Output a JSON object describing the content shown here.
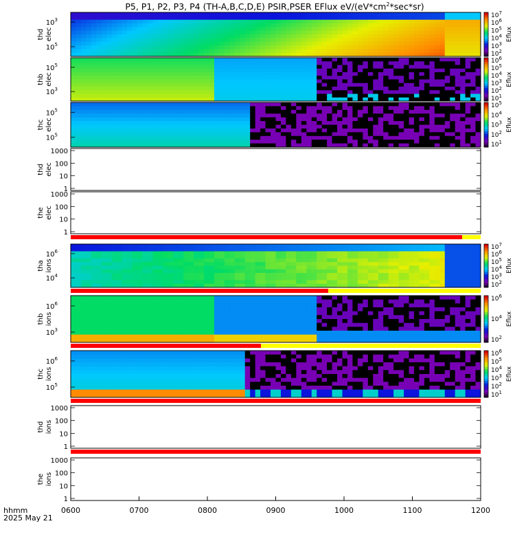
{
  "title": "P5, P1, P2, P3, P4 (TH-A,B,C,D,E) PSIR,PSER EFlux eV/(eV*cm",
  "title_sup": "2",
  "title_tail": "*sec*sr)",
  "footer": {
    "time_label": "hhmm",
    "date_label": "2025 May 21"
  },
  "chart_data": {
    "type": "heatmap",
    "x_axis": {
      "ticks": [
        "0600",
        "0700",
        "0800",
        "0900",
        "1000",
        "1100",
        "1200"
      ],
      "range_hours": [
        6,
        12
      ]
    },
    "colorbar_label": "Eflux",
    "panels": [
      {
        "label1": "thd",
        "label2": "elec",
        "kind": "spec",
        "yticks": [
          "10",
          "10"
        ],
        "ysup": [
          "3",
          "5"
        ],
        "cbar_ticks": [
          "7",
          "6",
          "5",
          "4",
          "3",
          "2"
        ],
        "pattern": "tha_elec"
      },
      {
        "label1": "thb",
        "label2": "elec",
        "kind": "spec",
        "yticks": [
          "10",
          "10"
        ],
        "ysup": [
          "5",
          "3"
        ],
        "cbar_ticks": [
          "6",
          "5",
          "4",
          "3",
          "2",
          "1"
        ],
        "pattern": "thb_elec"
      },
      {
        "label1": "thc",
        "label2": "elec",
        "kind": "spec",
        "yticks": [
          "10",
          "10"
        ],
        "ysup": [
          "5",
          "5"
        ],
        "cbar_ticks": [
          "5",
          "4",
          "3",
          "2",
          "1"
        ],
        "pattern": "thc_elec"
      },
      {
        "label1": "thd",
        "label2": "elec",
        "kind": "empty",
        "yticks": [
          "1000",
          "100",
          "10",
          "1"
        ]
      },
      {
        "label1": "the",
        "label2": "elec",
        "kind": "empty",
        "yticks": [
          "1000",
          "100",
          "10",
          "1"
        ]
      },
      {
        "label1": "tha",
        "label2": "ions",
        "kind": "spec",
        "yticks": [
          "10",
          "10"
        ],
        "ysup": [
          "6",
          "4"
        ],
        "cbar_ticks": [
          "7",
          "6",
          "5",
          "4",
          "3",
          "2"
        ],
        "pattern": "tha_ions"
      },
      {
        "label1": "thb",
        "label2": "ions",
        "kind": "spec",
        "yticks": [
          "10",
          "10"
        ],
        "ysup": [
          "6",
          "3"
        ],
        "cbar_ticks": [
          "6",
          "4",
          "2"
        ],
        "pattern": "thb_ions"
      },
      {
        "label1": "thc",
        "label2": "ions",
        "kind": "spec",
        "yticks": [
          "10",
          "10"
        ],
        "ysup": [
          "6",
          "5"
        ],
        "cbar_ticks": [
          "6",
          "5",
          "4",
          "3",
          "2",
          "1"
        ],
        "pattern": "thc_ions"
      },
      {
        "label1": "thd",
        "label2": "ions",
        "kind": "empty",
        "yticks": [
          "1000",
          "100",
          "10",
          "1"
        ]
      },
      {
        "label1": "the",
        "label2": "ions",
        "kind": "empty",
        "yticks": [
          "1000",
          "100",
          "10",
          "1"
        ]
      }
    ]
  }
}
